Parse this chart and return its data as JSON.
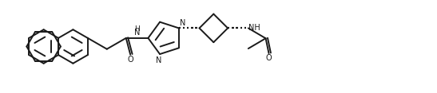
{
  "bg_color": "#ffffff",
  "line_color": "#1a1a1a",
  "line_width": 1.4,
  "figsize": [
    5.47,
    1.17
  ],
  "dpi": 100,
  "font_size": 7.0,
  "xlim": [
    0,
    5.47
  ],
  "ylim": [
    0,
    1.17
  ]
}
